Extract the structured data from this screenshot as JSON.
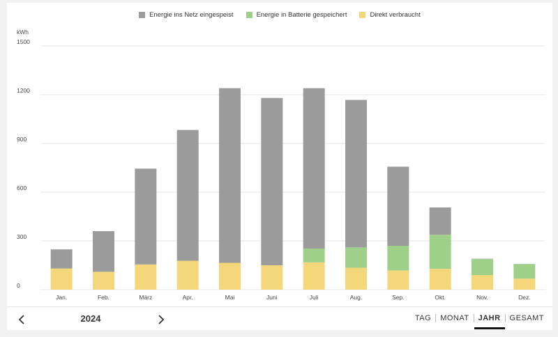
{
  "legend": [
    {
      "label": "Energie ins Netz eingespeist",
      "color": "#9b9b9b"
    },
    {
      "label": "Energie in Batterie gespeichert",
      "color": "#9fd08a"
    },
    {
      "label": "Direkt verbraucht",
      "color": "#f3d77a"
    }
  ],
  "chart_data": {
    "type": "bar",
    "stacked": true,
    "ylabel": "kWh",
    "ylim": [
      0,
      1500
    ],
    "yticks": [
      0,
      300,
      600,
      900,
      1200,
      1500
    ],
    "grid": true,
    "legend_position": "top-center",
    "categories": [
      "Jan.",
      "Feb.",
      "März",
      "Apr.",
      "Mai",
      "Juni",
      "Juli",
      "Aug.",
      "Sep.",
      "Okt.",
      "Nov.",
      "Dez."
    ],
    "series": [
      {
        "name": "Direkt verbraucht",
        "color": "#f3d77a",
        "values": [
          130,
          110,
          155,
          178,
          165,
          150,
          168,
          135,
          118,
          128,
          90,
          68
        ]
      },
      {
        "name": "Energie in Batterie gespeichert",
        "color": "#9fd08a",
        "values": [
          0,
          0,
          0,
          0,
          0,
          0,
          85,
          125,
          152,
          210,
          98,
          90
        ]
      },
      {
        "name": "Energie ins Netz eingespeist",
        "color": "#9b9b9b",
        "values": [
          118,
          250,
          590,
          805,
          1075,
          1030,
          987,
          908,
          487,
          168,
          2,
          0
        ]
      }
    ]
  },
  "footer": {
    "year": "2024",
    "prev_icon": "chevron-left-icon",
    "next_icon": "chevron-right-icon",
    "tabs": [
      "TAG",
      "MONAT",
      "JAHR",
      "GESAMT"
    ],
    "active_tab": "JAHR"
  }
}
